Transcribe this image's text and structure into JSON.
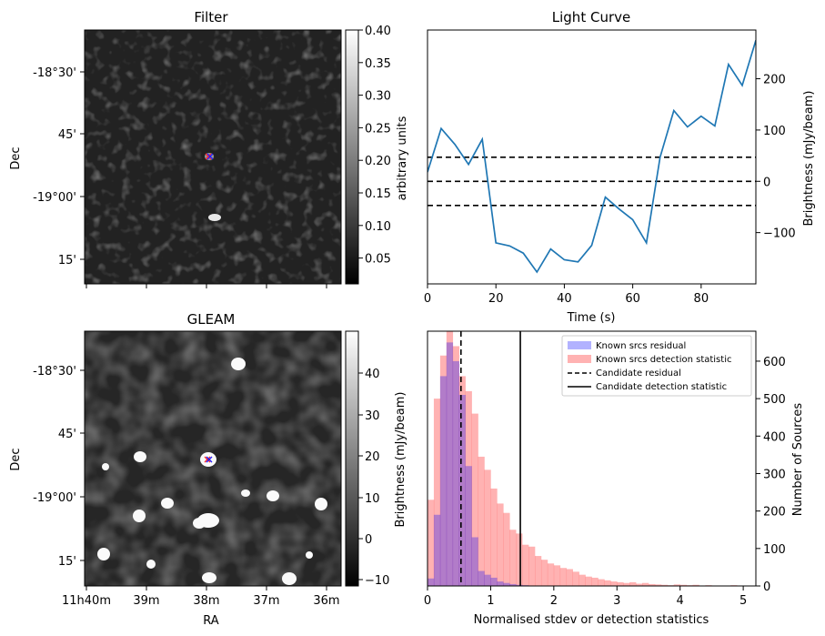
{
  "chart_data": [
    {
      "type": "heatmap",
      "title": "Filter",
      "ylabel": "Dec",
      "y_ticks": [
        "-18°30'",
        "45'",
        "-19°00'",
        "15'"
      ],
      "colorbar": {
        "label": "arbitrary units",
        "range": [
          0.01,
          0.4
        ],
        "ticks": [
          "0.40",
          "0.35",
          "0.30",
          "0.25",
          "0.20",
          "0.15",
          "0.10",
          "0.05"
        ]
      },
      "colormap": "gray"
    },
    {
      "type": "line",
      "title": "Light Curve",
      "xlabel": "Time (s)",
      "ylabel": "Brightness (mJy/beam)",
      "xlim": [
        0,
        96
      ],
      "ylim": [
        -200,
        295
      ],
      "x_ticks": [
        0,
        20,
        40,
        60,
        80
      ],
      "y_ticks": [
        -100,
        0,
        100,
        200
      ],
      "color": "#1f77b4",
      "series": [
        {
          "x": [
            0,
            4,
            8,
            12,
            16,
            20,
            24,
            28,
            32,
            36,
            40,
            44,
            48,
            52,
            56,
            60,
            64,
            68,
            72,
            76,
            80,
            84,
            88,
            92,
            96
          ],
          "values": [
            18,
            103,
            72,
            33,
            82,
            -120,
            -126,
            -140,
            -177,
            -132,
            -153,
            -157,
            -125,
            -31,
            -54,
            -75,
            -120,
            47,
            138,
            106,
            127,
            108,
            228,
            187,
            275
          ]
        }
      ],
      "hlines": [
        47,
        0,
        -47
      ]
    },
    {
      "type": "heatmap",
      "title": "GLEAM",
      "xlabel": "RA",
      "ylabel": "Dec",
      "x_ticks": [
        "11h40m",
        "39m",
        "38m",
        "37m",
        "36m"
      ],
      "y_ticks": [
        "-18°30'",
        "45'",
        "-19°00'",
        "15'"
      ],
      "colorbar": {
        "label": "Brightness (mJy/beam)",
        "range": [
          -12,
          49
        ],
        "ticks": [
          "40",
          "30",
          "20",
          "10",
          "0",
          "−10"
        ]
      },
      "colormap": "gray"
    },
    {
      "type": "bar",
      "xlabel": "Normalised stdev or detection statistics",
      "ylabel": "Number of Sources",
      "xlim": [
        0,
        5.2
      ],
      "ylim": [
        0,
        680
      ],
      "x_ticks": [
        0,
        1,
        2,
        3,
        4,
        5
      ],
      "y_ticks": [
        0,
        100,
        200,
        300,
        400,
        500,
        600
      ],
      "bin_width": 0.1,
      "series": [
        {
          "name": "Known srcs residual",
          "color": "#0000ff",
          "values": [
            20,
            190,
            560,
            650,
            600,
            510,
            320,
            130,
            40,
            30,
            22,
            12,
            8,
            5,
            3,
            2,
            1
          ]
        },
        {
          "name": "Known srcs detection statistic",
          "color": "#ff0000",
          "values": [
            230,
            500,
            615,
            680,
            640,
            560,
            520,
            460,
            345,
            310,
            260,
            220,
            195,
            150,
            140,
            110,
            105,
            80,
            70,
            60,
            55,
            48,
            45,
            38,
            30,
            25,
            22,
            18,
            15,
            12,
            10,
            8,
            10,
            6,
            8,
            5,
            4,
            3,
            2,
            4,
            3,
            2,
            3,
            1,
            2,
            1,
            1,
            0,
            2,
            1
          ]
        }
      ],
      "vlines": [
        {
          "name": "Candidate residual",
          "x": 0.53,
          "style": "dashed"
        },
        {
          "name": "Candidate detection statistic",
          "x": 1.47,
          "style": "solid"
        }
      ],
      "legend": "top-right"
    }
  ]
}
